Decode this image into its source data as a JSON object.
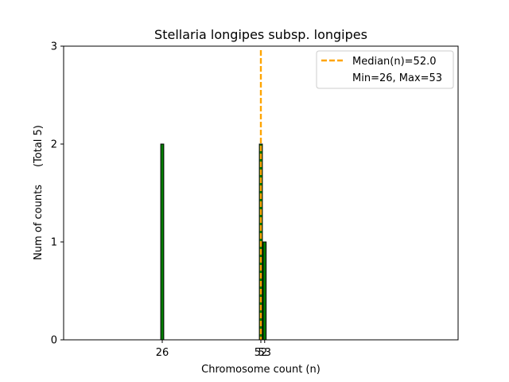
{
  "chart_data": {
    "type": "bar",
    "title": "Stellaria longipes subsp. longipes",
    "xlabel": "Chromosome count (n)",
    "ylabel": "Num of counts",
    "ylabel_note": "(Total 5)",
    "bars": [
      {
        "x": 26,
        "count": 2
      },
      {
        "x": 52,
        "count": 2
      },
      {
        "x": 53,
        "count": 1
      }
    ],
    "xticks": [
      26,
      52,
      53
    ],
    "yticks": [
      0,
      1,
      2,
      3
    ],
    "xlim": [
      0,
      104
    ],
    "ylim": [
      0,
      3
    ],
    "median": 52.0,
    "legend": {
      "placement": "top-right",
      "median_label": "Median(n)=52.0",
      "range_label": "Min=26, Max=53"
    },
    "colors": {
      "bar_fill": "#008000",
      "bar_edge": "#000000",
      "median_line": "#FFA500"
    }
  }
}
